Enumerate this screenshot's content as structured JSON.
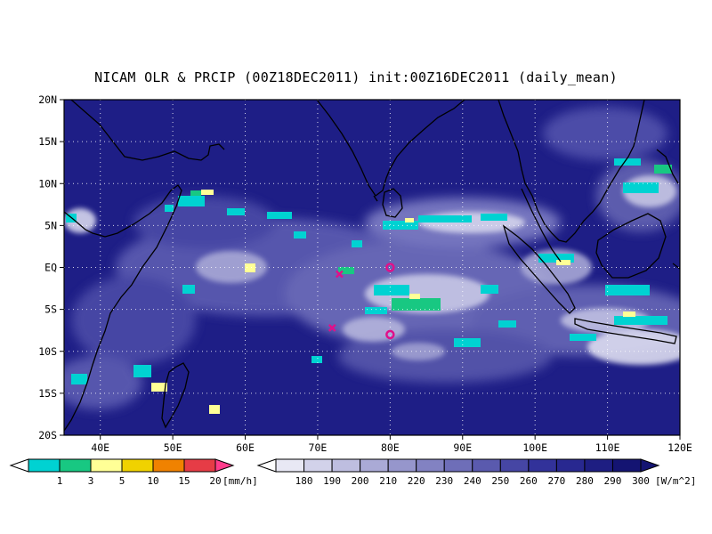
{
  "title": "NICAM OLR & PRCIP (00Z18DEC2011) init:00Z16DEC2011 (daily_mean)",
  "map": {
    "lon_range": [
      35,
      120
    ],
    "lat_range": [
      -20,
      20
    ],
    "lat_ticks": [
      {
        "value": 20,
        "label": "20N"
      },
      {
        "value": 15,
        "label": "15N"
      },
      {
        "value": 10,
        "label": "10N"
      },
      {
        "value": 5,
        "label": "5N"
      },
      {
        "value": 0,
        "label": "EQ"
      },
      {
        "value": -5,
        "label": "5S"
      },
      {
        "value": -10,
        "label": "10S"
      },
      {
        "value": -15,
        "label": "15S"
      },
      {
        "value": -20,
        "label": "20S"
      }
    ],
    "lon_ticks": [
      {
        "value": 40,
        "label": "40E"
      },
      {
        "value": 50,
        "label": "50E"
      },
      {
        "value": 60,
        "label": "60E"
      },
      {
        "value": 70,
        "label": "70E"
      },
      {
        "value": 80,
        "label": "80E"
      },
      {
        "value": 90,
        "label": "90E"
      },
      {
        "value": 100,
        "label": "100E"
      },
      {
        "value": 110,
        "label": "110E"
      },
      {
        "value": 120,
        "label": "120E"
      }
    ],
    "grid": "dotted",
    "markers": [
      {
        "type": "circle",
        "lon": 80,
        "lat": 0,
        "color": "#e0108a"
      },
      {
        "type": "circle",
        "lon": 80,
        "lat": -8,
        "color": "#e0108a"
      },
      {
        "type": "cross",
        "lon": 73,
        "lat": -0.8,
        "color": "#e0108a"
      },
      {
        "type": "cross",
        "lon": 72,
        "lat": -7.2,
        "color": "#e0108a"
      }
    ]
  },
  "precip_colorbar": {
    "labels": [
      "1",
      "3",
      "5",
      "10",
      "15",
      "20"
    ],
    "unit": "[mm/h]",
    "colors": [
      "#00d2d2",
      "#18c882",
      "#ffff96",
      "#f0d200",
      "#f08200",
      "#e63c46"
    ]
  },
  "olr_colorbar": {
    "labels": [
      "180",
      "190",
      "200",
      "210",
      "220",
      "230",
      "240",
      "250",
      "260",
      "270",
      "280",
      "290",
      "300"
    ],
    "unit": "[W/m^2]",
    "colors": [
      "#e8e8f4",
      "#d2d2ea",
      "#bebee0",
      "#aaaad6",
      "#9696cc",
      "#8282c2",
      "#6e6eb8",
      "#5a5aae",
      "#4646a4",
      "#32329a",
      "#282890",
      "#1e1e82",
      "#141472"
    ]
  }
}
